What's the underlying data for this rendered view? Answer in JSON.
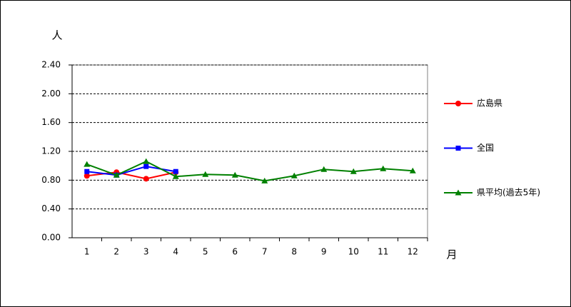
{
  "chart_data": {
    "type": "line",
    "y_label": "人",
    "x_label": "月",
    "categories": [
      "1",
      "2",
      "3",
      "4",
      "5",
      "6",
      "7",
      "8",
      "9",
      "10",
      "11",
      "12"
    ],
    "series": [
      {
        "name": "広島県",
        "color": "#ff0000",
        "marker": "circle",
        "values": [
          0.86,
          0.91,
          0.82,
          0.91,
          null,
          null,
          null,
          null,
          null,
          null,
          null,
          null
        ]
      },
      {
        "name": "全国",
        "color": "#0000ff",
        "marker": "square",
        "values": [
          0.92,
          0.87,
          0.99,
          0.92,
          null,
          null,
          null,
          null,
          null,
          null,
          null,
          null
        ]
      },
      {
        "name": "県平均(過去5年)",
        "color": "#008000",
        "marker": "triangle",
        "values": [
          1.02,
          0.87,
          1.06,
          0.85,
          0.88,
          0.87,
          0.79,
          0.86,
          0.95,
          0.92,
          0.96,
          0.93
        ]
      }
    ],
    "ylim": [
      0,
      2.4
    ],
    "yticks": [
      {
        "value": 0,
        "label": "0.00"
      },
      {
        "value": 0.4,
        "label": "0.40"
      },
      {
        "value": 0.8,
        "label": "0.80"
      },
      {
        "value": 1.2,
        "label": "1.20"
      },
      {
        "value": 1.6,
        "label": "1.60"
      },
      {
        "value": 2.0,
        "label": "2.00"
      },
      {
        "value": 2.4,
        "label": "2.40"
      }
    ],
    "grid": true,
    "legend": "right"
  }
}
